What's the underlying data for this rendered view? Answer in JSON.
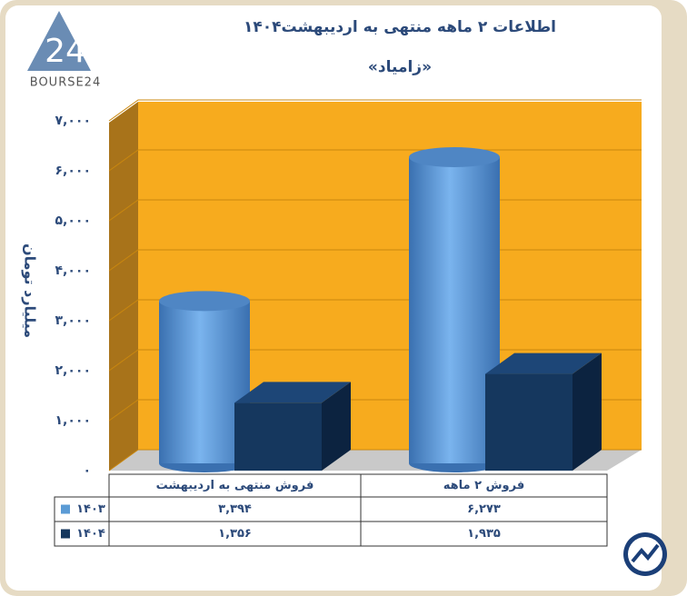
{
  "logo": {
    "number": "24",
    "text": "BOURSE24"
  },
  "chart_data": {
    "type": "bar3d",
    "title": "اطلاعات ۲ ماهه منتهی به اردیبهشت۱۴۰۴",
    "subtitle": "«زامیاد»",
    "y_label": "میلیارد تومان",
    "categories": [
      "فروش منتهی به  اردیبهشت",
      "فروش ۲ ماهه"
    ],
    "series": [
      {
        "name": "۱۴۰۳",
        "color": "#5b9bd5",
        "values": [
          3394,
          6273
        ],
        "value_labels": [
          "۳,۳۹۴",
          "۶,۲۷۳"
        ]
      },
      {
        "name": "۱۴۰۴",
        "color": "#15375e",
        "values": [
          1356,
          1935
        ],
        "value_labels": [
          "۱,۳۵۶",
          "۱,۹۳۵"
        ]
      }
    ],
    "ylim": [
      0,
      7000
    ],
    "yticks": [
      {
        "value": 0,
        "label": "۰"
      },
      {
        "value": 1000,
        "label": "۱,۰۰۰"
      },
      {
        "value": 2000,
        "label": "۲,۰۰۰"
      },
      {
        "value": 3000,
        "label": "۳,۰۰۰"
      },
      {
        "value": 4000,
        "label": "۴,۰۰۰"
      },
      {
        "value": 5000,
        "label": "۵,۰۰۰"
      },
      {
        "value": 6000,
        "label": "۶,۰۰۰"
      },
      {
        "value": 7000,
        "label": "۷,۰۰۰"
      }
    ],
    "grid": true
  }
}
